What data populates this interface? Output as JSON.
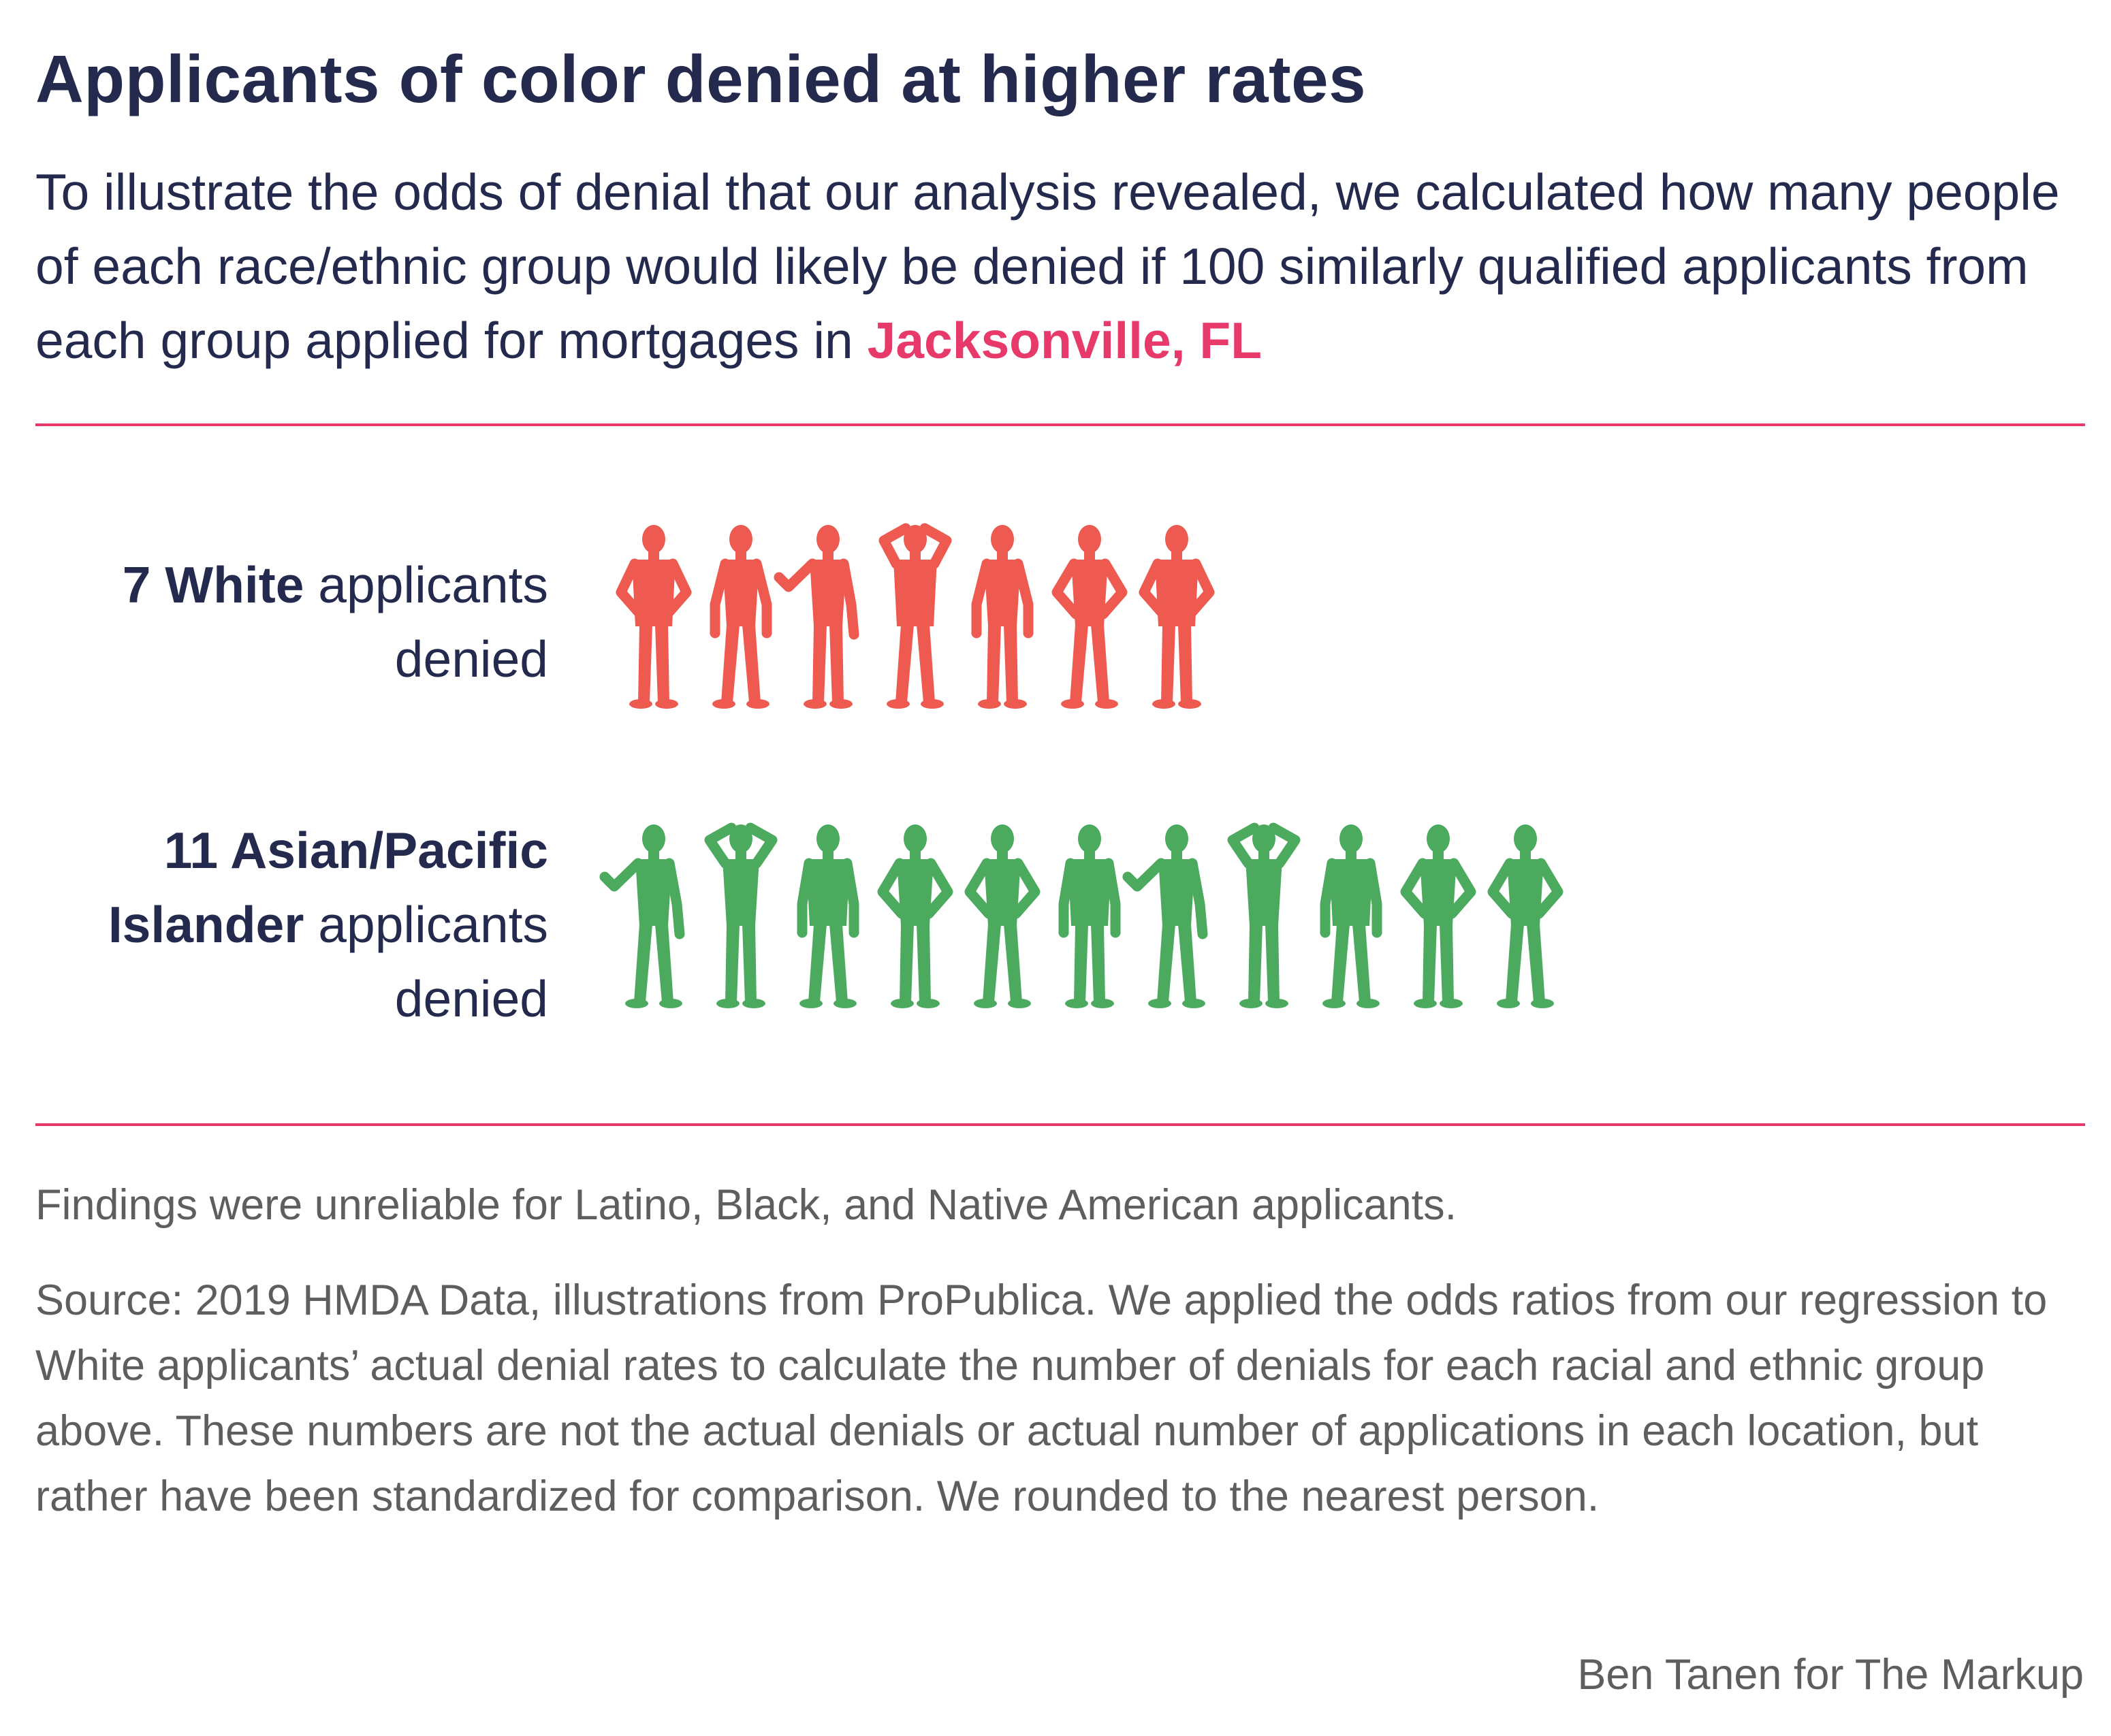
{
  "title": "Applicants of color denied at higher rates",
  "subtitle": {
    "text": "To illustrate the odds of denial that our analysis revealed, we calculated how many people of each race/ethnic group would likely be denied if 100 similarly qualified applicants from each group applied for mortgages in ",
    "place": "Jacksonville, FL"
  },
  "chart_data": {
    "type": "pictogram",
    "unit": "applicants denied per 100 similarly qualified applicants",
    "series": [
      {
        "name": "White",
        "value": 7,
        "color": "#ee5a50",
        "label": {
          "highlight": "7 White",
          "rest": " applicants denied"
        }
      },
      {
        "name": "Asian/Pacific Islander",
        "value": 11,
        "color": "#4caa5f",
        "label": {
          "highlight": "11 Asian/Pacific Islander",
          "rest": " applicants denied"
        }
      }
    ]
  },
  "colors": {
    "title": "#232a4d",
    "accent": "#e7396a",
    "notes": "#5e5e5e"
  },
  "icons": [
    "person-silhouette-icon"
  ],
  "note": "Findings were unreliable for Latino, Black, and Native American applicants.",
  "source": "Source: 2019 HMDA Data, illustrations from ProPublica. We applied the odds ratios from our regression to White applicants’ actual denial rates to calculate the number of denials for each racial and ethnic group above. These numbers are not the actual denials or actual number of applications in each location, but rather have been standardized for comparison. We rounded to the nearest person.",
  "credit": "Ben Tanen for The Markup"
}
